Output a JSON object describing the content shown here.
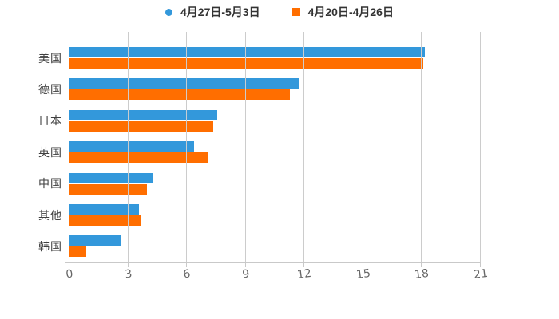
{
  "page": {
    "background": "#ffffff"
  },
  "colors": {
    "series_blue": "#3398db",
    "series_orange": "#ff6e00",
    "gridline": "#cccccc",
    "axis": "#c9c9c9",
    "tick_label": "#666666",
    "category_label": "#3f3f3f",
    "legend_text": "#333333"
  },
  "chart_data": {
    "type": "bar",
    "orientation": "horizontal",
    "title": "",
    "xlabel": "",
    "ylabel": "",
    "grid": true,
    "legend_position": "top",
    "categories": [
      "美国",
      "德国",
      "日本",
      "英国",
      "中国",
      "其他",
      "韩国"
    ],
    "series": [
      {
        "name": "4月27日-5月3日",
        "color": "#3398db",
        "marker": "circle",
        "values": [
          18.2,
          11.8,
          7.6,
          6.4,
          4.3,
          3.6,
          2.7
        ]
      },
      {
        "name": "4月20日-4月26日",
        "color": "#ff6e00",
        "marker": "square",
        "values": [
          18.1,
          11.3,
          7.4,
          7.1,
          4.0,
          3.7,
          0.9
        ]
      }
    ],
    "xticks": [
      0,
      3,
      6,
      9,
      12,
      15,
      18,
      21
    ],
    "xlim": [
      0,
      21
    ]
  }
}
